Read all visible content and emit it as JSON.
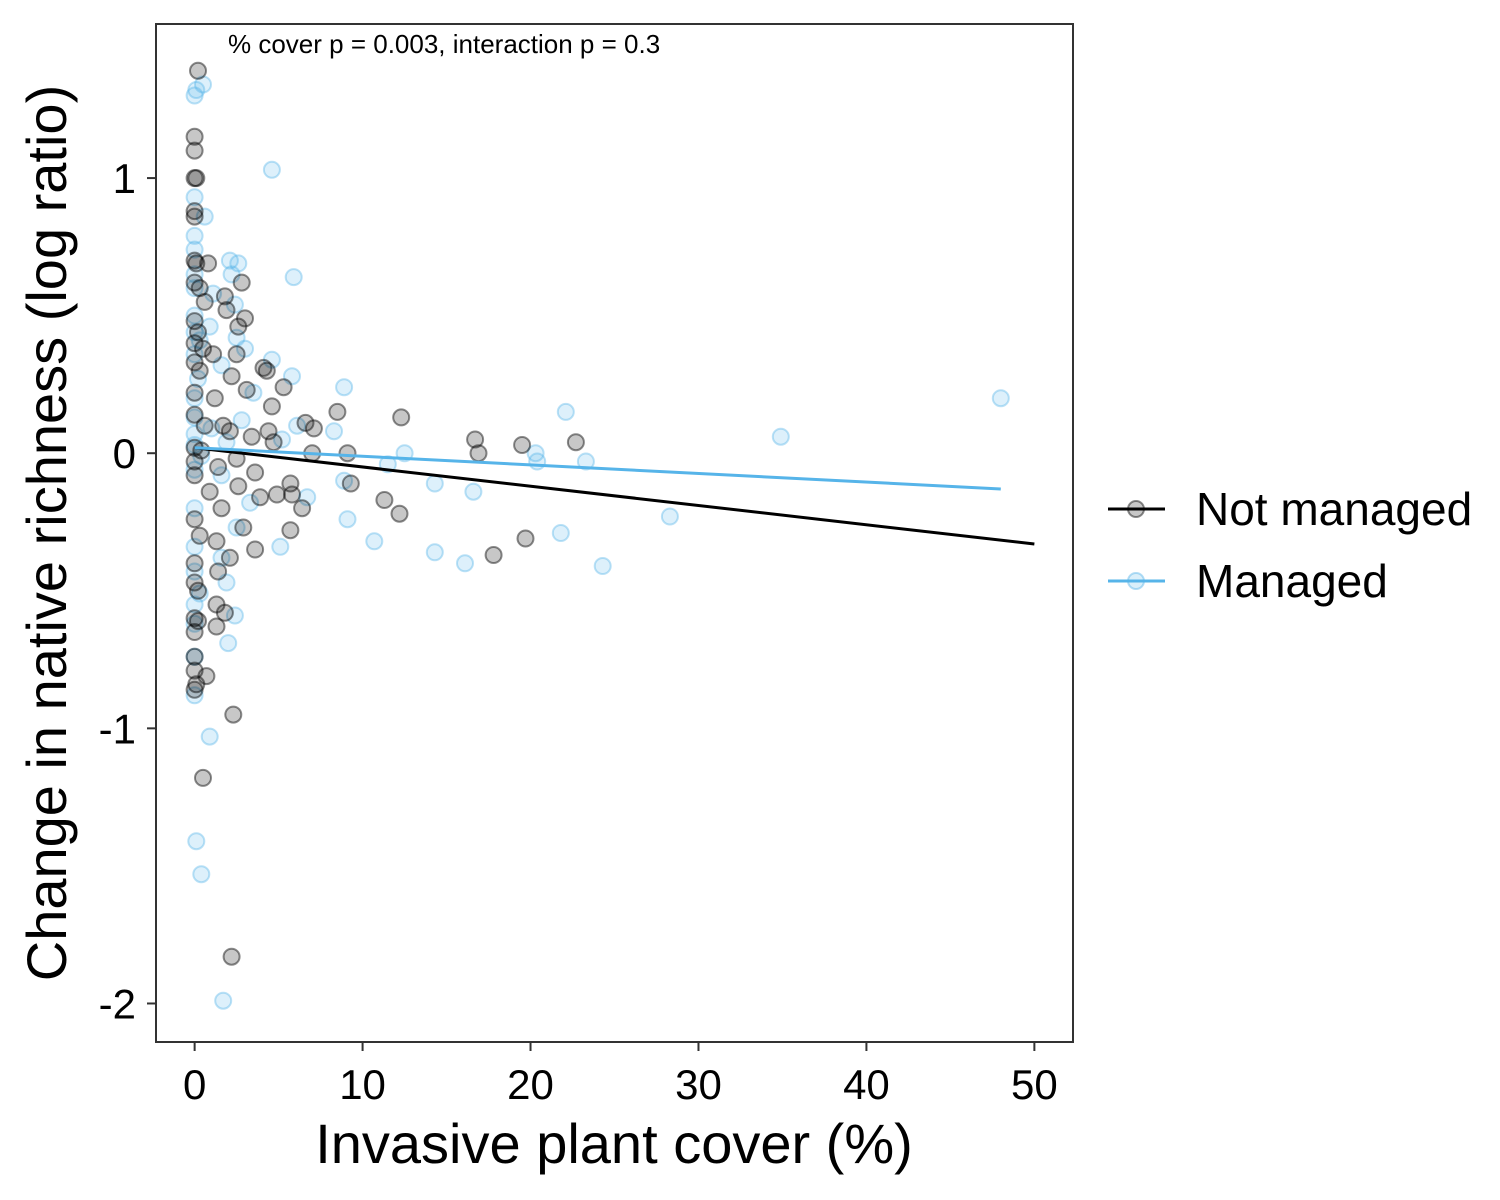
{
  "chart_data": {
    "type": "scatter",
    "annotation": "% cover p = 0.003, interaction p = 0.3",
    "xlabel": "Invasive plant cover (%)",
    "ylabel": "Change in native richness (log ratio)",
    "xlim": [
      -2.3,
      52.3
    ],
    "ylim": [
      -2.14,
      1.56
    ],
    "xticks": [
      0,
      10,
      20,
      30,
      40,
      50
    ],
    "yticks": [
      -2,
      -1,
      0,
      1
    ],
    "xtick_labels": [
      "0",
      "10",
      "20",
      "30",
      "40",
      "50"
    ],
    "ytick_labels": [
      "-2",
      "-1",
      "0",
      "1"
    ],
    "grid": false,
    "legend_position": "right",
    "series": [
      {
        "name": "Not managed",
        "color": "#000000",
        "fit": {
          "x": [
            0,
            50
          ],
          "y": [
            0.02,
            -0.33
          ]
        },
        "points": [
          [
            0.2,
            1.39
          ],
          [
            0.0,
            1.15
          ],
          [
            0.0,
            1.1
          ],
          [
            0.0,
            1.0
          ],
          [
            0.1,
            1.0
          ],
          [
            0.0,
            0.88
          ],
          [
            0.0,
            0.86
          ],
          [
            0.0,
            0.7
          ],
          [
            0.1,
            0.69
          ],
          [
            0.8,
            0.69
          ],
          [
            0.0,
            0.62
          ],
          [
            0.3,
            0.6
          ],
          [
            2.8,
            0.62
          ],
          [
            1.8,
            0.57
          ],
          [
            1.9,
            0.52
          ],
          [
            0.6,
            0.55
          ],
          [
            3.0,
            0.49
          ],
          [
            2.6,
            0.46
          ],
          [
            0.0,
            0.48
          ],
          [
            0.2,
            0.44
          ],
          [
            0.0,
            0.4
          ],
          [
            0.5,
            0.38
          ],
          [
            1.1,
            0.36
          ],
          [
            2.5,
            0.36
          ],
          [
            0.0,
            0.33
          ],
          [
            0.3,
            0.3
          ],
          [
            4.1,
            0.31
          ],
          [
            4.3,
            0.3
          ],
          [
            2.2,
            0.28
          ],
          [
            5.3,
            0.24
          ],
          [
            3.1,
            0.23
          ],
          [
            0.0,
            0.22
          ],
          [
            1.2,
            0.2
          ],
          [
            4.6,
            0.17
          ],
          [
            8.5,
            0.15
          ],
          [
            0.0,
            0.14
          ],
          [
            12.3,
            0.13
          ],
          [
            6.6,
            0.11
          ],
          [
            0.6,
            0.1
          ],
          [
            1.7,
            0.1
          ],
          [
            7.1,
            0.09
          ],
          [
            4.4,
            0.08
          ],
          [
            2.1,
            0.08
          ],
          [
            3.4,
            0.06
          ],
          [
            16.7,
            0.05
          ],
          [
            22.7,
            0.04
          ],
          [
            4.7,
            0.04
          ],
          [
            19.5,
            0.03
          ],
          [
            0.0,
            0.02
          ],
          [
            0.4,
            0.01
          ],
          [
            7.0,
            0.0
          ],
          [
            9.1,
            0.0
          ],
          [
            16.9,
            0.0
          ],
          [
            2.5,
            -0.02
          ],
          [
            0.0,
            -0.03
          ],
          [
            1.4,
            -0.05
          ],
          [
            3.6,
            -0.07
          ],
          [
            0.0,
            -0.08
          ],
          [
            5.7,
            -0.11
          ],
          [
            9.3,
            -0.11
          ],
          [
            2.6,
            -0.12
          ],
          [
            0.9,
            -0.14
          ],
          [
            5.8,
            -0.15
          ],
          [
            3.9,
            -0.16
          ],
          [
            11.3,
            -0.17
          ],
          [
            4.9,
            -0.15
          ],
          [
            6.4,
            -0.2
          ],
          [
            1.6,
            -0.2
          ],
          [
            12.2,
            -0.22
          ],
          [
            0.0,
            -0.24
          ],
          [
            2.9,
            -0.27
          ],
          [
            5.7,
            -0.28
          ],
          [
            0.3,
            -0.3
          ],
          [
            19.7,
            -0.31
          ],
          [
            1.3,
            -0.32
          ],
          [
            3.6,
            -0.35
          ],
          [
            17.8,
            -0.37
          ],
          [
            2.1,
            -0.38
          ],
          [
            0.0,
            -0.4
          ],
          [
            1.4,
            -0.43
          ],
          [
            0.0,
            -0.47
          ],
          [
            0.2,
            -0.5
          ],
          [
            1.3,
            -0.55
          ],
          [
            1.8,
            -0.58
          ],
          [
            0.0,
            -0.6
          ],
          [
            0.2,
            -0.61
          ],
          [
            1.3,
            -0.63
          ],
          [
            0.0,
            -0.65
          ],
          [
            0.0,
            -0.74
          ],
          [
            0.0,
            -0.79
          ],
          [
            0.7,
            -0.81
          ],
          [
            0.1,
            -0.84
          ],
          [
            0.0,
            -0.86
          ],
          [
            2.3,
            -0.95
          ],
          [
            0.5,
            -1.18
          ],
          [
            2.2,
            -1.83
          ]
        ]
      },
      {
        "name": "Managed",
        "color": "#56B4E9",
        "fit": {
          "x": [
            0,
            48
          ],
          "y": [
            0.02,
            -0.13
          ]
        },
        "points": [
          [
            0.5,
            1.34
          ],
          [
            0.1,
            1.32
          ],
          [
            0.0,
            1.3
          ],
          [
            4.6,
            1.03
          ],
          [
            0.0,
            0.93
          ],
          [
            0.6,
            0.86
          ],
          [
            0.0,
            0.79
          ],
          [
            0.0,
            0.74
          ],
          [
            2.1,
            0.7
          ],
          [
            2.6,
            0.69
          ],
          [
            0.0,
            0.65
          ],
          [
            5.9,
            0.64
          ],
          [
            2.2,
            0.65
          ],
          [
            0.0,
            0.6
          ],
          [
            1.1,
            0.58
          ],
          [
            2.4,
            0.54
          ],
          [
            0.0,
            0.5
          ],
          [
            0.9,
            0.46
          ],
          [
            0.0,
            0.44
          ],
          [
            2.5,
            0.42
          ],
          [
            0.3,
            0.41
          ],
          [
            3.0,
            0.38
          ],
          [
            0.0,
            0.36
          ],
          [
            4.6,
            0.34
          ],
          [
            1.6,
            0.32
          ],
          [
            5.8,
            0.28
          ],
          [
            0.2,
            0.27
          ],
          [
            8.9,
            0.24
          ],
          [
            3.5,
            0.22
          ],
          [
            0.0,
            0.2
          ],
          [
            48.0,
            0.2
          ],
          [
            22.1,
            0.15
          ],
          [
            0.0,
            0.13
          ],
          [
            2.8,
            0.12
          ],
          [
            6.1,
            0.1
          ],
          [
            1.0,
            0.09
          ],
          [
            8.3,
            0.08
          ],
          [
            0.0,
            0.07
          ],
          [
            34.9,
            0.06
          ],
          [
            5.2,
            0.05
          ],
          [
            1.9,
            0.04
          ],
          [
            0.0,
            0.03
          ],
          [
            12.5,
            0.0
          ],
          [
            20.3,
            0.0
          ],
          [
            0.4,
            -0.01
          ],
          [
            20.4,
            -0.03
          ],
          [
            23.3,
            -0.03
          ],
          [
            11.5,
            -0.04
          ],
          [
            0.0,
            -0.06
          ],
          [
            1.6,
            -0.08
          ],
          [
            8.9,
            -0.1
          ],
          [
            14.3,
            -0.11
          ],
          [
            16.6,
            -0.14
          ],
          [
            6.7,
            -0.16
          ],
          [
            3.3,
            -0.18
          ],
          [
            0.0,
            -0.2
          ],
          [
            28.3,
            -0.23
          ],
          [
            9.1,
            -0.24
          ],
          [
            2.5,
            -0.27
          ],
          [
            21.8,
            -0.29
          ],
          [
            10.7,
            -0.32
          ],
          [
            5.1,
            -0.34
          ],
          [
            0.0,
            -0.34
          ],
          [
            14.3,
            -0.36
          ],
          [
            1.6,
            -0.38
          ],
          [
            16.1,
            -0.4
          ],
          [
            24.3,
            -0.41
          ],
          [
            0.0,
            -0.43
          ],
          [
            1.9,
            -0.47
          ],
          [
            0.3,
            -0.51
          ],
          [
            0.0,
            -0.55
          ],
          [
            2.4,
            -0.59
          ],
          [
            0.0,
            -0.62
          ],
          [
            2.0,
            -0.69
          ],
          [
            0.0,
            -0.74
          ],
          [
            0.0,
            -0.88
          ],
          [
            0.9,
            -1.03
          ],
          [
            0.1,
            -1.41
          ],
          [
            0.4,
            -1.53
          ],
          [
            1.7,
            -1.99
          ]
        ]
      }
    ]
  }
}
